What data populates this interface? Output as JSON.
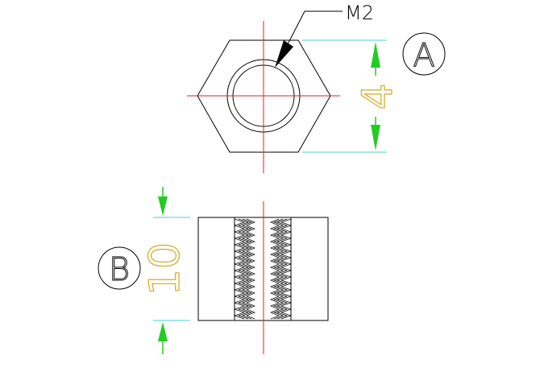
{
  "drawing": {
    "thread_label": "M2",
    "dimension_width": "4",
    "dimension_height": "10",
    "view_top_marker": "A",
    "view_side_marker": "B"
  },
  "colors": {
    "outline": "#000000",
    "centerline": "#e02020",
    "extension_line": "#40d0e0",
    "arrow": "#22cc22",
    "dimension_text": "#d8a820"
  }
}
